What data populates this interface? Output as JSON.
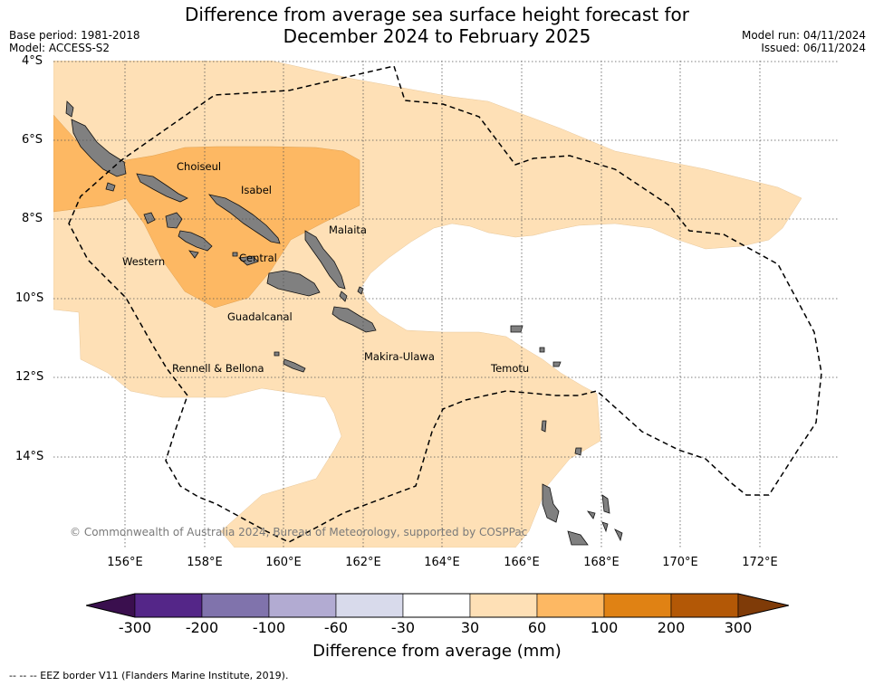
{
  "title": {
    "line1": "Difference from average sea surface height forecast for",
    "line2": "December 2024 to February 2025"
  },
  "meta": {
    "base_period": "Base period: 1981-2018",
    "model": "Model: ACCESS-S2",
    "model_run": "Model run: 04/11/2024",
    "issued": "Issued: 06/11/2024"
  },
  "axes": {
    "lat_labels": [
      "4°S",
      "6°S",
      "8°S",
      "10°S",
      "12°S",
      "14°S"
    ],
    "lon_labels": [
      "156°E",
      "158°E",
      "160°E",
      "162°E",
      "164°E",
      "166°E",
      "168°E",
      "170°E",
      "172°E"
    ]
  },
  "places": [
    "Choiseul",
    "Isabel",
    "Malaita",
    "Western",
    "Central",
    "Guadalcanal",
    "Rennell & Bellona",
    "Makira-Ulawa",
    "Temotu"
  ],
  "copyright": "© Commonwealth of Australia 2024, Bureau of Meteorology, supported by COSPPac",
  "colorbar": {
    "title": "Difference from average (mm)",
    "ticks": [
      "-300",
      "-200",
      "-100",
      "-60",
      "-30",
      "30",
      "60",
      "100",
      "200",
      "300"
    ],
    "colors": [
      "#3a0f4e",
      "#542688",
      "#8073ac",
      "#b2abd2",
      "#d8daeb",
      "#ffffff",
      "#fee0b6",
      "#fdb863",
      "#e08214",
      "#b35806",
      "#7f3b08"
    ]
  },
  "footer": "--  --  -- EEZ border V11 (Flanders Marine Institute, 2019)."
}
